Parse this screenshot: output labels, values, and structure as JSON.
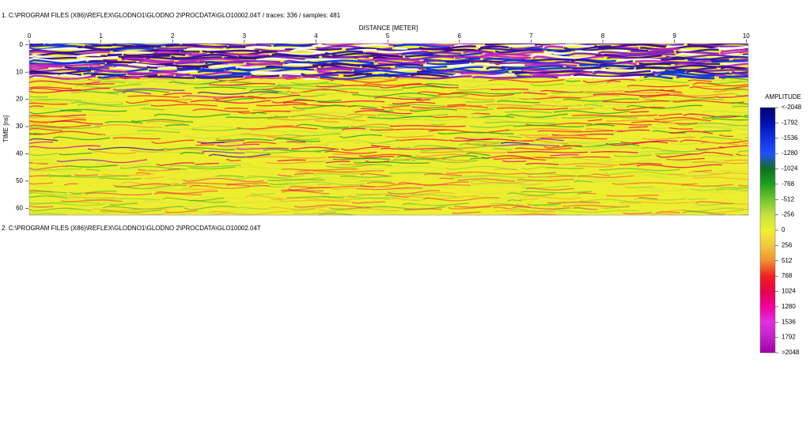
{
  "chart_data": {
    "type": "radargram",
    "header": "1. C:\\PROGRAM FILES (X86)\\REFLEX\\GLODNO1\\GLODNO 2\\PROCDATA\\GLO10002.04T  / traces: 336 / samples: 481",
    "footer": "2. C:\\PROGRAM FILES (X86)\\REFLEX\\GLODNO1\\GLODNO 2\\PROCDATA\\GLO10002.04T",
    "xlabel": "DISTANCE [METER]",
    "ylabel": "TIME [ns]",
    "xlim": [
      0,
      10.03
    ],
    "xticks": [
      0,
      1,
      2,
      3,
      4,
      5,
      6,
      7,
      8,
      9,
      10
    ],
    "ylim": [
      -0.5,
      62.5
    ],
    "yticks": [
      0,
      10,
      20,
      30,
      40,
      50,
      60
    ],
    "colorbar": {
      "title": "AMPLITUDE",
      "ticks": [
        {
          "value": -2048,
          "label": "<-2048"
        },
        -1792,
        -1536,
        -1280,
        -1024,
        -768,
        -512,
        -256,
        0,
        256,
        512,
        768,
        1024,
        1280,
        1536,
        1792,
        {
          "value": 2048,
          "label": ">2048"
        }
      ],
      "colors": [
        "#000070",
        "#0010b0",
        "#1030e0",
        "#2050ff",
        "#107020",
        "#20a020",
        "#70c830",
        "#c8e040",
        "#f0f030",
        "#f0c840",
        "#f09030",
        "#f02020",
        "#e8004a",
        "#f000a0",
        "#e030e0",
        "#c020c8",
        "#a000a0"
      ]
    }
  }
}
